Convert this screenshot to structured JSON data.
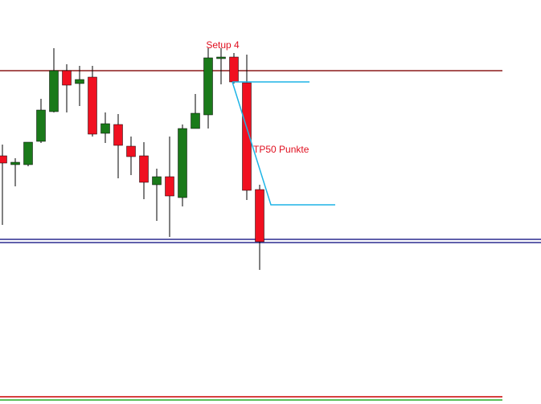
{
  "chart_data": {
    "type": "candlestick",
    "categories": [
      null,
      null,
      null,
      null,
      null,
      null,
      null,
      null,
      null,
      null,
      null,
      null,
      null,
      null,
      null,
      null,
      null,
      null,
      null,
      null,
      null
    ],
    "open": [
      309,
      298,
      298,
      327,
      364,
      415,
      399,
      407,
      337,
      348,
      321,
      309,
      273,
      283,
      257,
      343,
      360,
      430,
      432,
      400,
      267
    ],
    "high": [
      323,
      306,
      326,
      380,
      443,
      423,
      421,
      421,
      363,
      361,
      333,
      326,
      293,
      333,
      348,
      386,
      443,
      443,
      437,
      435,
      273
    ],
    "low": [
      223,
      271,
      296,
      325,
      363,
      363,
      371,
      333,
      325,
      281,
      285,
      255,
      228,
      208,
      246,
      343,
      343,
      398,
      399,
      254,
      167
    ],
    "close": [
      300,
      301,
      326,
      366,
      415,
      397,
      404,
      336,
      349,
      322,
      308,
      276,
      283,
      259,
      343,
      362,
      431,
      432,
      401,
      266,
      202
    ],
    "up_color": "#1a7a1a",
    "down_color": "#f01020",
    "wick_color": "#000000",
    "ylim": [
      0,
      503
    ],
    "levels": [
      {
        "value": 415,
        "color": "#8b1a1a"
      },
      {
        "value": 205,
        "color": "#2b2b8f",
        "full_width": true
      },
      {
        "value": 201,
        "color": "#2b2b8f",
        "full_width": true
      },
      {
        "value": 9,
        "color": "#cc0000"
      },
      {
        "value": 5,
        "color": "#22aa22"
      }
    ],
    "trendlines": [
      {
        "color": "#1eb4e6",
        "x": [
          17.875,
          23.875
        ],
        "values": [
          401,
          401
        ]
      },
      {
        "color": "#1eb4e6",
        "x": [
          17.875,
          20.875,
          25.875
        ],
        "values": [
          401,
          248,
          248
        ]
      }
    ],
    "annotations": [
      {
        "text": "Setup 4",
        "x": 17.125,
        "value": 446,
        "anchor": "middle"
      },
      {
        "text": "TP50 Punkte",
        "x": 19.5,
        "value": 316,
        "anchor": "start"
      }
    ]
  }
}
